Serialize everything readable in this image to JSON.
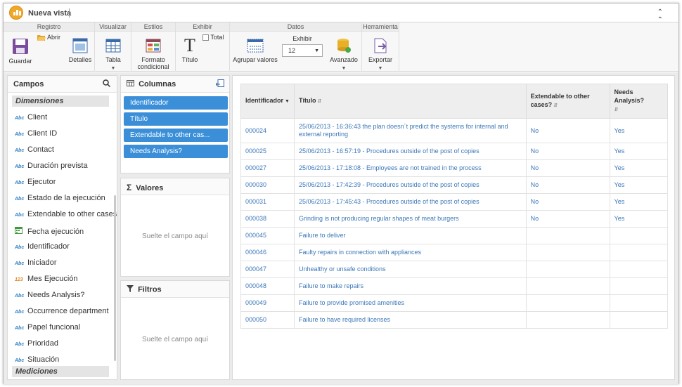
{
  "window": {
    "title": "Nueva vista",
    "collapse_icon": "double-chevron-up"
  },
  "ribbon": {
    "groups": {
      "registro": "Registro",
      "visualizar": "Visualizar",
      "estilos": "Estilos",
      "exhibir": "Exhibir",
      "datos": "Datos",
      "herramienta": "Herramienta"
    },
    "buttons": {
      "guardar": "Guardar",
      "abrir": "Abrir",
      "detalles": "Detalles",
      "tabla": "Tabla",
      "formato_1": "Formato",
      "formato_2": "condicional",
      "titulo": "Título",
      "total": "Total",
      "agrupar": "Agrupar valores",
      "exhibir_label": "Exhibir",
      "exhibir_value": "12",
      "avanzado": "Avanzado",
      "exportar": "Exportar"
    }
  },
  "campos": {
    "header": "Campos",
    "categories": {
      "dimensiones": "Dimensiones",
      "mediciones": "Mediciones"
    },
    "fields": [
      {
        "type": "Abc",
        "label": "Client"
      },
      {
        "type": "Abc",
        "label": "Client ID"
      },
      {
        "type": "Abc",
        "label": "Contact"
      },
      {
        "type": "Abc",
        "label": "Duración prevista"
      },
      {
        "type": "Abc",
        "label": "Ejecutor"
      },
      {
        "type": "Abc",
        "label": "Estado de la ejecución"
      },
      {
        "type": "Abc",
        "label": "Extendable to other cases?"
      },
      {
        "type": "date",
        "label": "Fecha ejecución"
      },
      {
        "type": "Abc",
        "label": "Identificador"
      },
      {
        "type": "Abc",
        "label": "Iniciador"
      },
      {
        "type": "123",
        "label": "Mes Ejecución"
      },
      {
        "type": "Abc",
        "label": "Needs Analysis?"
      },
      {
        "type": "Abc",
        "label": "Occurrence department"
      },
      {
        "type": "Abc",
        "label": "Papel funcional"
      },
      {
        "type": "Abc",
        "label": "Prioridad"
      },
      {
        "type": "Abc",
        "label": "Situación"
      }
    ]
  },
  "columnas": {
    "header": "Columnas",
    "chips": [
      "Identificador",
      "Título",
      "Extendable to other cas...",
      "Needs Analysis?"
    ]
  },
  "valores": {
    "header": "Valores",
    "drop": "Suelte el campo aquí"
  },
  "filtros": {
    "header": "Filtros",
    "drop": "Suelte el campo aquí"
  },
  "table": {
    "headers": [
      "Identificador",
      "Título",
      "Extendable to other cases?",
      "Needs Analysis?"
    ],
    "rows": [
      [
        "000024",
        "25/06/2013 - 16:36:43 the plan doesn´t predict the systems for internal and external reporting",
        "No",
        "Yes"
      ],
      [
        "000025",
        "25/06/2013 - 16:57:19 - Procedures outside of the post of copies",
        "No",
        "Yes"
      ],
      [
        "000027",
        "25/06/2013 - 17:18:08 - Employees are not trained in the process",
        "No",
        "Yes"
      ],
      [
        "000030",
        "25/06/2013 - 17:42:39 - Procedures outside of the post of copies",
        "No",
        "Yes"
      ],
      [
        "000031",
        "25/06/2013 - 17:45:43 - Procedures outside of the post of copies",
        "No",
        "Yes"
      ],
      [
        "000038",
        "Grinding is not producing regular shapes of meat burgers",
        "No",
        "Yes"
      ],
      [
        "000045",
        "Failure to deliver",
        "",
        ""
      ],
      [
        "000046",
        "Faulty repairs in connection with appliances",
        "",
        ""
      ],
      [
        "000047",
        "Unhealthy or unsafe conditions",
        "",
        ""
      ],
      [
        "000048",
        "Failure to make repairs",
        "",
        ""
      ],
      [
        "000049",
        "Failure to provide promised amenities",
        "",
        ""
      ],
      [
        "000050",
        "Failure to have required licenses",
        "",
        ""
      ]
    ]
  }
}
